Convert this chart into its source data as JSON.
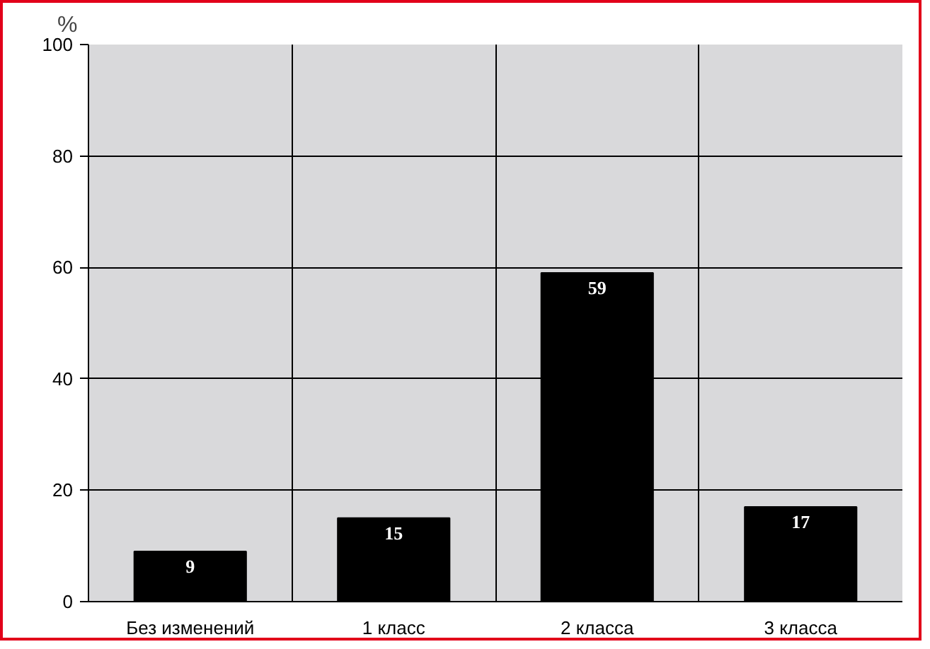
{
  "chart_data": {
    "type": "bar",
    "ylabel": "%",
    "categories": [
      "Без изменений",
      "1 класс",
      "2 класса",
      "3 класса"
    ],
    "values": [
      9,
      15,
      59,
      17
    ],
    "color": "#000000",
    "ylim": [
      0,
      100
    ],
    "yticks": [
      0,
      20,
      40,
      60,
      80,
      100
    ],
    "grid": true,
    "data_labels": true
  }
}
